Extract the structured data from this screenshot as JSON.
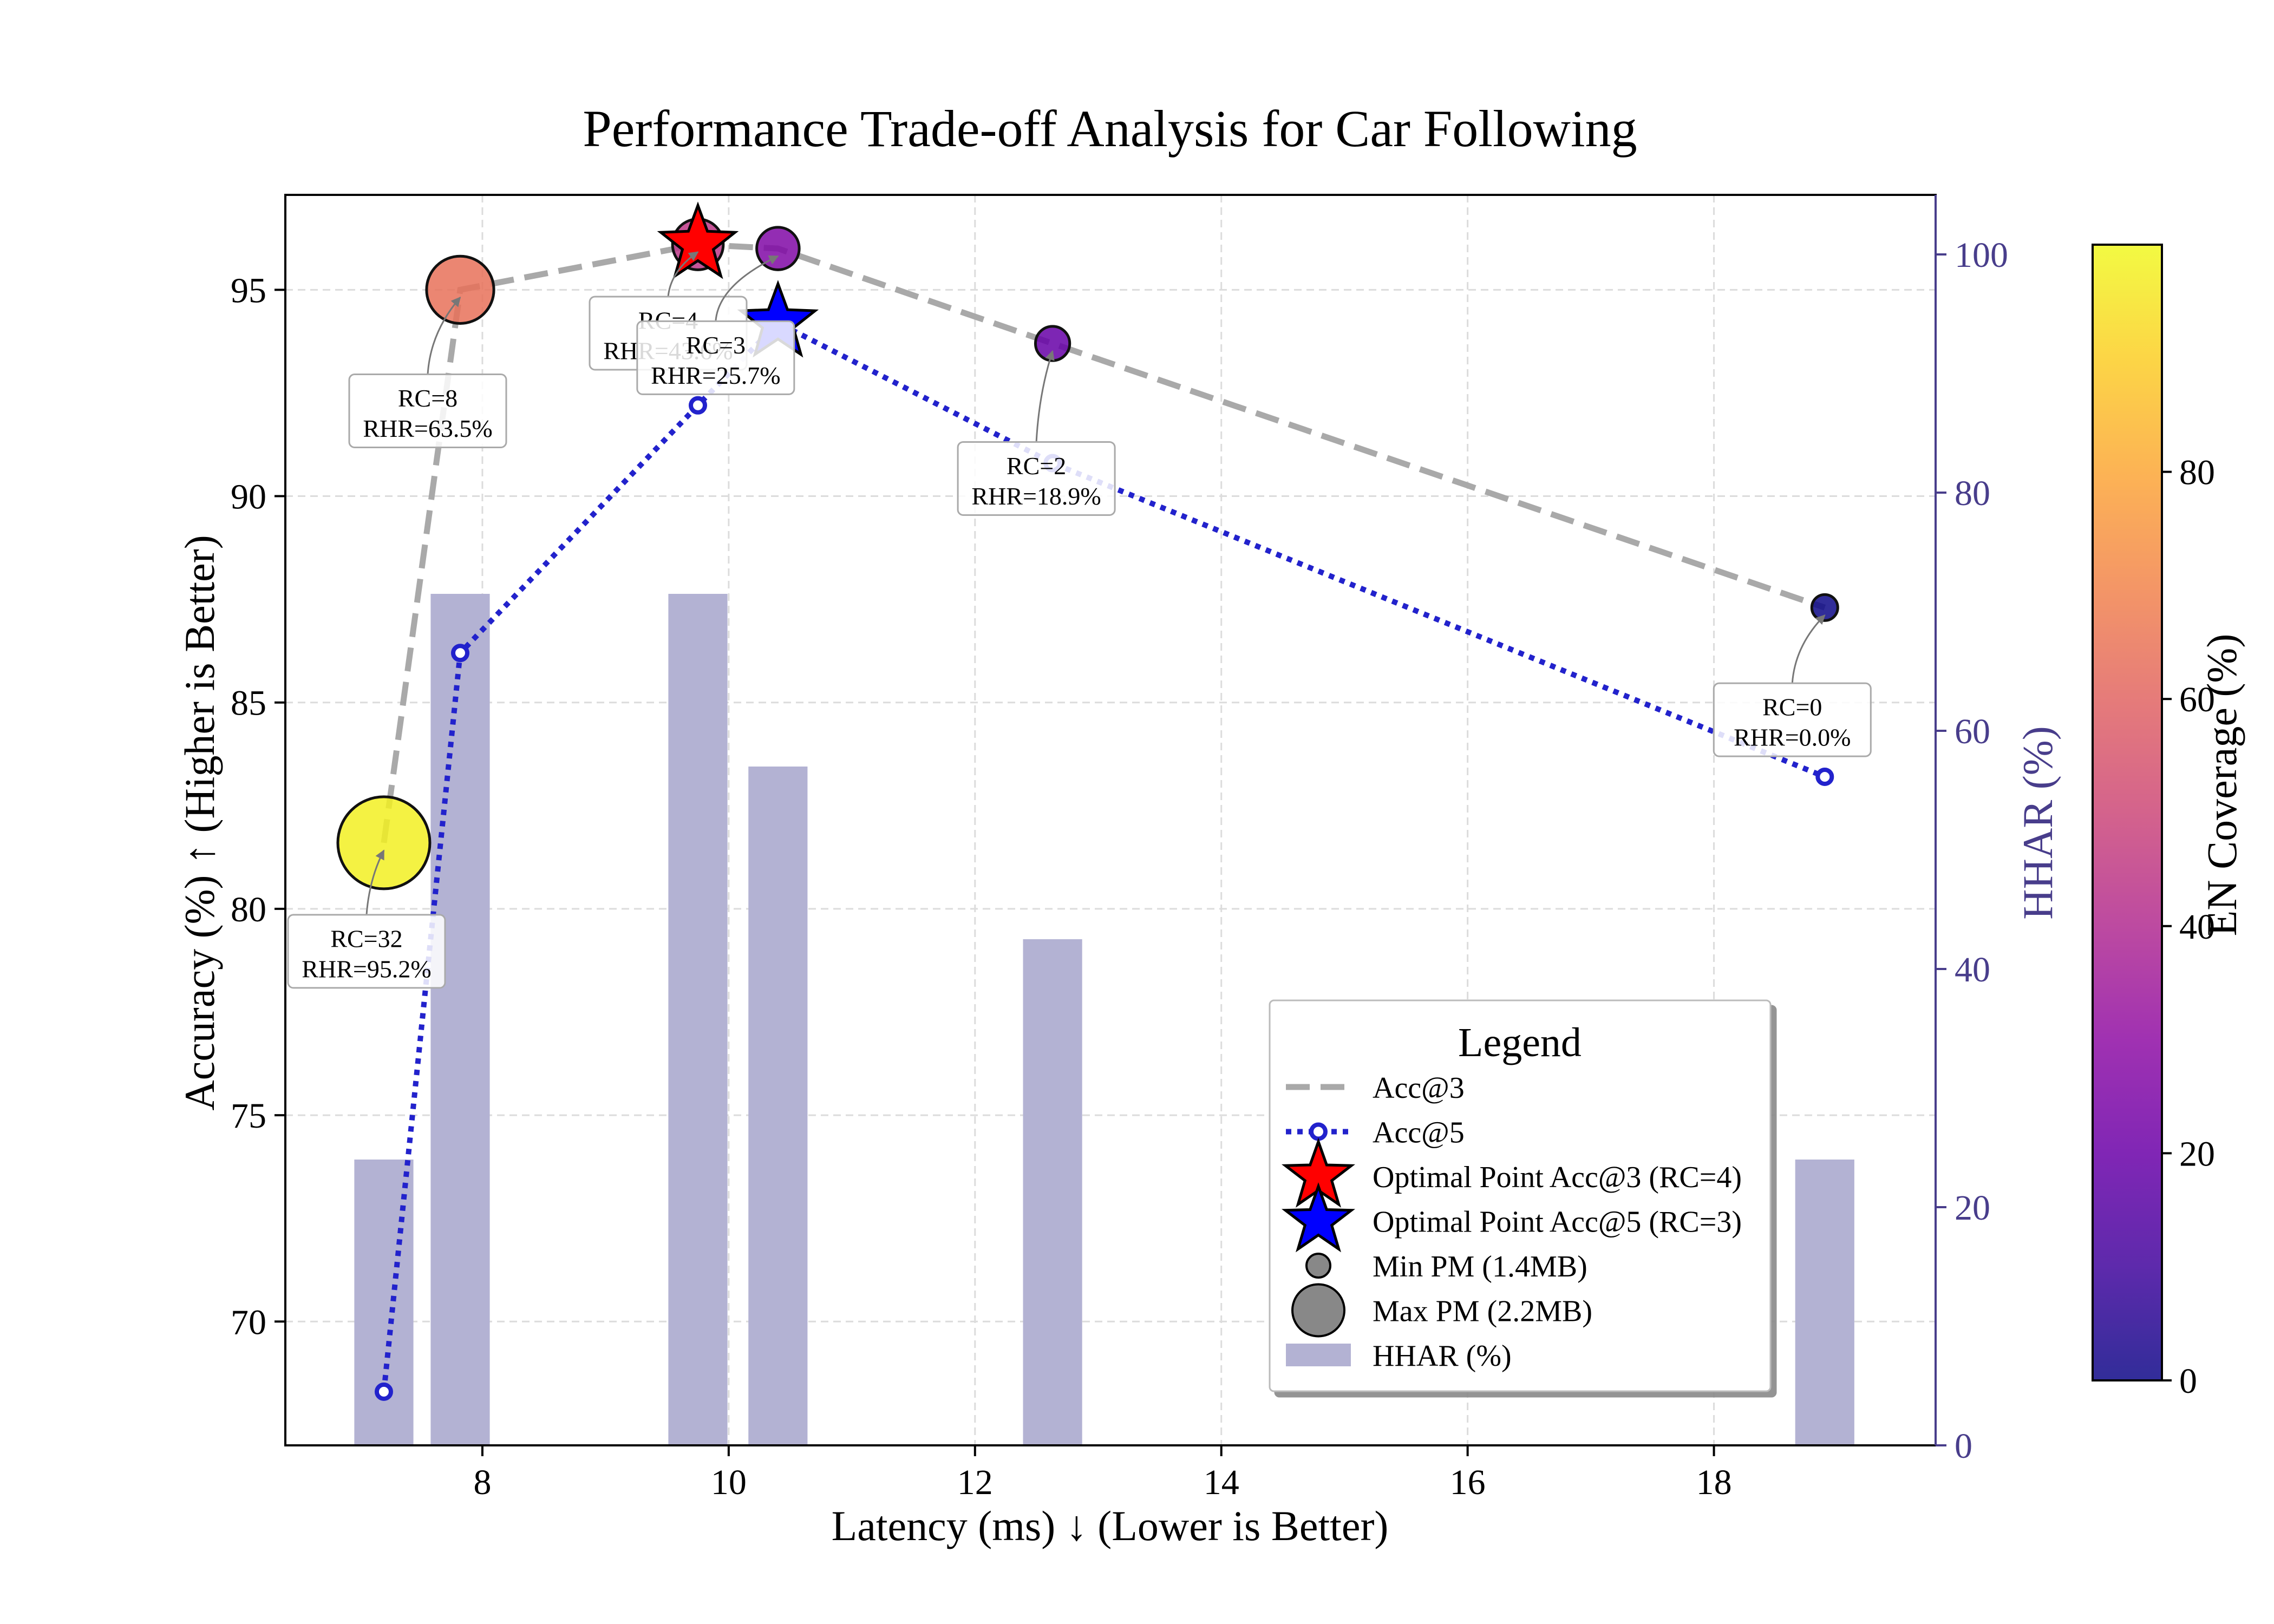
{
  "chart_data": {
    "type": "scatter",
    "title": "Performance Trade-off Analysis for Car Following",
    "xlabel": "Latency (ms) ↓ (Lower is Better)",
    "ylabel": "Accuracy (%) ↑ (Higher is Better)",
    "y2label": "HHAR (%)",
    "colorbar_label": "EN Coverage (%)",
    "xlim": [
      6.4,
      19.8
    ],
    "ylim": [
      67.0,
      97.3
    ],
    "y2lim": [
      0,
      105
    ],
    "colorbar_range": [
      0,
      100
    ],
    "xticks": [
      8,
      10,
      12,
      14,
      16,
      18
    ],
    "yticks": [
      70,
      75,
      80,
      85,
      90,
      95
    ],
    "y2ticks": [
      0,
      20,
      40,
      60,
      80,
      100
    ],
    "colorbar_ticks": [
      0,
      20,
      40,
      60,
      80
    ],
    "grid": true,
    "colormap": "plasma",
    "accent_colors": {
      "acc3_line": "#a9a9a9",
      "acc5_line": "#2222cc",
      "hhar_bar": "#b3b2d3",
      "right_axis": "#483d8b",
      "optimal_acc3": "#ff0000",
      "optimal_acc5": "#0000ff"
    },
    "points": [
      {
        "rc": 32,
        "latency": 7.2,
        "acc3": 81.6,
        "acc5": 68.3,
        "en_coverage": 98,
        "pm": 2.2,
        "annotation": [
          "RC=32",
          "RHR=95.2%"
        ]
      },
      {
        "rc": 8,
        "latency": 7.82,
        "acc3": 95.0,
        "acc5": 86.2,
        "en_coverage": 64,
        "pm": 1.9,
        "annotation": [
          "RC=8",
          "RHR=63.5%"
        ]
      },
      {
        "rc": 4,
        "latency": 9.75,
        "acc3": 96.1,
        "acc5": 92.2,
        "en_coverage": 44,
        "pm": 1.7,
        "annotation": [
          "RC=4",
          "RHR=43.6%"
        ]
      },
      {
        "rc": 3,
        "latency": 10.4,
        "acc3": 96.0,
        "acc5": 94.2,
        "en_coverage": 26,
        "pm": 1.6,
        "annotation": [
          "RC=3",
          "RHR=25.7%"
        ]
      },
      {
        "rc": 2,
        "latency": 12.63,
        "acc3": 93.7,
        "acc5": 90.8,
        "en_coverage": 19,
        "pm": 1.5,
        "annotation": [
          "RC=2",
          "RHR=18.9%"
        ]
      },
      {
        "rc": 0,
        "latency": 18.9,
        "acc3": 87.3,
        "acc5": 83.2,
        "en_coverage": 0,
        "pm": 1.4,
        "annotation": [
          "RC=0",
          "RHR=0.0%"
        ]
      }
    ],
    "bars": {
      "name": "HHAR (%)",
      "width_ms": 0.48,
      "items": [
        {
          "latency": 7.2,
          "value": 24
        },
        {
          "latency": 7.82,
          "value": 71.5
        },
        {
          "latency": 9.75,
          "value": 71.5
        },
        {
          "latency": 10.4,
          "value": 57
        },
        {
          "latency": 12.63,
          "value": 42.5
        },
        {
          "latency": 18.9,
          "value": 24
        }
      ]
    },
    "optimal": [
      {
        "series": "acc3",
        "latency": 9.75,
        "value": 96.1,
        "label": "Optimal Point Acc@3 (RC=4)"
      },
      {
        "series": "acc5",
        "latency": 10.4,
        "value": 94.2,
        "label": "Optimal Point Acc@5 (RC=3)"
      }
    ],
    "legend": {
      "title": "Legend",
      "placement": "lower-right",
      "items": [
        "Acc@3",
        "Acc@5",
        "Optimal Point Acc@3 (RC=4)",
        "Optimal Point Acc@5 (RC=3)",
        "Min PM (1.4MB)",
        "Max PM (2.2MB)",
        "HHAR (%)"
      ]
    }
  }
}
